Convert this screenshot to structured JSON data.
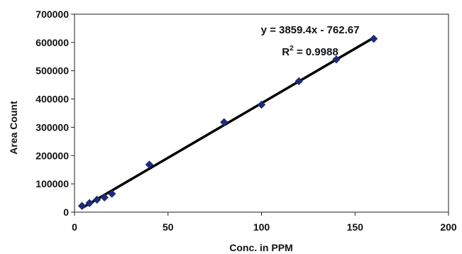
{
  "chart_data": {
    "type": "scatter",
    "xlabel": "Conc. in PPM",
    "ylabel": "Area Count",
    "xlim": [
      0,
      200
    ],
    "ylim": [
      0,
      700000
    ],
    "x_ticks": [
      0,
      50,
      100,
      150,
      200
    ],
    "y_ticks": [
      0,
      100000,
      200000,
      300000,
      400000,
      500000,
      600000,
      700000
    ],
    "x_tick_labels": [
      "0",
      "50",
      "100",
      "150",
      "200"
    ],
    "y_tick_labels": [
      "0",
      "100000",
      "200000",
      "300000",
      "400000",
      "500000",
      "600000",
      "700000"
    ],
    "grid": false,
    "legend": "none",
    "series": [
      {
        "marker": "diamond",
        "color": "#1f2a7a",
        "points": [
          {
            "x": 4,
            "y": 22000
          },
          {
            "x": 8,
            "y": 32000
          },
          {
            "x": 12,
            "y": 44000
          },
          {
            "x": 16,
            "y": 52000
          },
          {
            "x": 20,
            "y": 65000
          },
          {
            "x": 40,
            "y": 168000
          },
          {
            "x": 80,
            "y": 318000
          },
          {
            "x": 100,
            "y": 380000
          },
          {
            "x": 120,
            "y": 463000
          },
          {
            "x": 140,
            "y": 540000
          },
          {
            "x": 160,
            "y": 613000
          }
        ]
      }
    ],
    "trendline": {
      "slope": 3859.4,
      "intercept": -762.67,
      "x_range": [
        4,
        160
      ],
      "color": "#000000"
    },
    "annotations": {
      "equation": "y = 3859.4x - 762.67",
      "r2_prefix": "R",
      "r2_sup": "2",
      "r2_value": " = 0.9988"
    }
  }
}
